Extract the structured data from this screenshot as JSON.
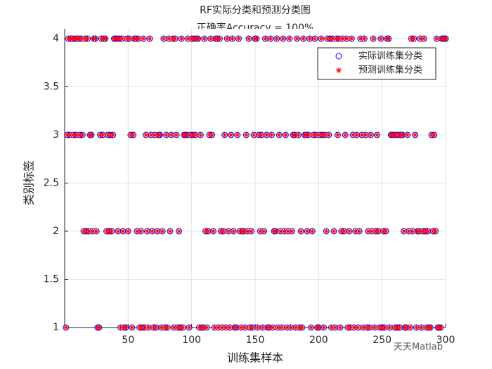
{
  "chart_data": {
    "type": "scatter",
    "title": "RF实际分类和预测分类图",
    "subtitle": "正确率Accuracy = 100%",
    "x_label": "训练集样本",
    "y_label": "类别标签",
    "watermark": "天天Matlab",
    "xlim": [
      0,
      300
    ],
    "xticks": [
      50,
      100,
      150,
      200,
      250,
      300
    ],
    "ylim": [
      1,
      4
    ],
    "yticks": [
      1,
      1.5,
      2,
      2.5,
      3,
      3.5,
      4
    ],
    "grid": true,
    "legend": "northeast",
    "x": [
      1,
      2,
      3,
      4,
      5,
      6,
      7,
      8,
      9,
      10,
      11,
      12,
      13,
      14,
      15,
      16,
      17,
      18,
      19,
      20,
      21,
      22,
      23,
      24,
      25,
      26,
      27,
      28,
      29,
      30,
      31,
      32,
      33,
      34,
      35,
      36,
      37,
      38,
      39,
      40,
      41,
      42,
      43,
      44,
      45,
      46,
      47,
      48,
      49,
      50,
      51,
      52,
      53,
      54,
      55,
      56,
      57,
      58,
      59,
      60,
      61,
      62,
      63,
      64,
      65,
      66,
      67,
      68,
      69,
      70,
      71,
      72,
      73,
      74,
      75,
      76,
      77,
      78,
      79,
      80,
      81,
      82,
      83,
      84,
      85,
      86,
      87,
      88,
      89,
      90,
      91,
      92,
      93,
      94,
      95,
      96,
      97,
      98,
      99,
      100,
      101,
      102,
      103,
      104,
      105,
      106,
      107,
      108,
      109,
      110,
      111,
      112,
      113,
      114,
      115,
      116,
      117,
      118,
      119,
      120,
      121,
      122,
      123,
      124,
      125,
      126,
      127,
      128,
      129,
      130,
      131,
      132,
      133,
      134,
      135,
      136,
      137,
      138,
      139,
      140,
      141,
      142,
      143,
      144,
      145,
      146,
      147,
      148,
      149,
      150,
      151,
      152,
      153,
      154,
      155,
      156,
      157,
      158,
      159,
      160,
      161,
      162,
      163,
      164,
      165,
      166,
      167,
      168,
      169,
      170,
      171,
      172,
      173,
      174,
      175,
      176,
      177,
      178,
      179,
      180,
      181,
      182,
      183,
      184,
      185,
      186,
      187,
      188,
      189,
      190,
      191,
      192,
      193,
      194,
      195,
      196,
      197,
      198,
      199,
      200,
      201,
      202,
      203,
      204,
      205,
      206,
      207,
      208,
      209,
      210,
      211,
      212,
      213,
      214,
      215,
      216,
      217,
      218,
      219,
      220,
      221,
      222,
      223,
      224,
      225,
      226,
      227,
      228,
      229,
      230,
      231,
      232,
      233,
      234,
      235,
      236,
      237,
      238,
      239,
      240,
      241,
      242,
      243,
      244,
      245,
      246,
      247,
      248,
      249,
      250,
      251,
      252,
      253,
      254,
      255,
      256,
      257,
      258,
      259,
      260,
      261,
      262,
      263,
      264,
      265,
      266,
      267,
      268,
      269,
      270,
      271,
      272,
      273,
      274,
      275,
      276,
      277,
      278,
      279,
      280,
      281,
      282,
      283,
      284,
      285,
      286,
      287,
      288,
      289,
      290,
      291,
      292,
      293,
      294,
      295,
      296,
      297,
      298,
      299,
      300
    ],
    "series": [
      {
        "name": "实际训练集分类",
        "color": "#0000ff",
        "marker": "o",
        "values": [
          1,
          3,
          4,
          3,
          4,
          4,
          3,
          4,
          3,
          4,
          4,
          3,
          4,
          3,
          2,
          4,
          2,
          4,
          2,
          3,
          3,
          2,
          4,
          4,
          2,
          1,
          1,
          3,
          4,
          3,
          4,
          4,
          2,
          3,
          2,
          3,
          2,
          3,
          4,
          4,
          4,
          2,
          4,
          1,
          4,
          2,
          1,
          1,
          4,
          2,
          4,
          3,
          1,
          3,
          4,
          4,
          2,
          4,
          1,
          2,
          1,
          4,
          1,
          3,
          2,
          1,
          4,
          3,
          2,
          1,
          3,
          1,
          2,
          3,
          3,
          1,
          2,
          4,
          1,
          3,
          1,
          4,
          2,
          3,
          4,
          1,
          4,
          3,
          1,
          2,
          1,
          4,
          1,
          3,
          3,
          3,
          4,
          1,
          3,
          4,
          3,
          4,
          3,
          4,
          4,
          1,
          3,
          1,
          1,
          4,
          2,
          1,
          2,
          3,
          4,
          3,
          2,
          1,
          4,
          4,
          1,
          4,
          2,
          1,
          2,
          3,
          1,
          4,
          2,
          1,
          3,
          4,
          2,
          1,
          1,
          3,
          4,
          2,
          1,
          2,
          2,
          1,
          3,
          2,
          4,
          1,
          2,
          1,
          3,
          4,
          4,
          1,
          3,
          2,
          3,
          1,
          2,
          4,
          3,
          1,
          1,
          4,
          3,
          1,
          2,
          2,
          4,
          1,
          3,
          2,
          1,
          4,
          2,
          3,
          1,
          2,
          4,
          1,
          2,
          3,
          3,
          1,
          4,
          3,
          1,
          2,
          1,
          4,
          3,
          3,
          2,
          3,
          4,
          1,
          2,
          3,
          4,
          3,
          1,
          1,
          3,
          4,
          3,
          1,
          3,
          2,
          4,
          3,
          4,
          1,
          4,
          2,
          1,
          4,
          3,
          4,
          1,
          2,
          4,
          2,
          3,
          4,
          1,
          2,
          1,
          4,
          3,
          1,
          2,
          3,
          1,
          2,
          4,
          3,
          1,
          4,
          3,
          1,
          2,
          1,
          3,
          2,
          4,
          1,
          2,
          3,
          2,
          1,
          4,
          1,
          2,
          1,
          2,
          4,
          4,
          1,
          3,
          3,
          3,
          1,
          3,
          1,
          3,
          1,
          3,
          3,
          2,
          1,
          1,
          3,
          2,
          1,
          4,
          2,
          4,
          3,
          1,
          2,
          2,
          4,
          1,
          2,
          4,
          2,
          1,
          2,
          1,
          1,
          3,
          2,
          3,
          2,
          4,
          1,
          1,
          1,
          4,
          4,
          4,
          4
        ]
      },
      {
        "name": "预测训练集分类",
        "color": "#ff0000",
        "marker": "*",
        "values": [
          1,
          3,
          4,
          3,
          4,
          4,
          3,
          4,
          3,
          4,
          4,
          3,
          4,
          3,
          2,
          4,
          2,
          4,
          2,
          3,
          3,
          2,
          4,
          4,
          2,
          1,
          1,
          3,
          4,
          3,
          4,
          4,
          2,
          3,
          2,
          3,
          2,
          3,
          4,
          4,
          4,
          2,
          4,
          1,
          4,
          2,
          1,
          1,
          4,
          2,
          4,
          3,
          1,
          3,
          4,
          4,
          2,
          4,
          1,
          2,
          1,
          4,
          1,
          3,
          2,
          1,
          4,
          3,
          2,
          1,
          3,
          1,
          2,
          3,
          3,
          1,
          2,
          4,
          1,
          3,
          1,
          4,
          2,
          3,
          4,
          1,
          4,
          3,
          1,
          2,
          1,
          4,
          1,
          3,
          3,
          3,
          4,
          1,
          3,
          4,
          3,
          4,
          3,
          4,
          4,
          1,
          3,
          1,
          1,
          4,
          2,
          1,
          2,
          3,
          4,
          3,
          2,
          1,
          4,
          4,
          1,
          4,
          2,
          1,
          2,
          3,
          1,
          4,
          2,
          1,
          3,
          4,
          2,
          1,
          1,
          3,
          4,
          2,
          1,
          2,
          2,
          1,
          3,
          2,
          4,
          1,
          2,
          1,
          3,
          4,
          4,
          1,
          3,
          2,
          3,
          1,
          2,
          4,
          3,
          1,
          1,
          4,
          3,
          1,
          2,
          2,
          4,
          1,
          3,
          2,
          1,
          4,
          2,
          3,
          1,
          2,
          4,
          1,
          2,
          3,
          3,
          1,
          4,
          3,
          1,
          2,
          1,
          4,
          3,
          3,
          2,
          3,
          4,
          1,
          2,
          3,
          4,
          3,
          1,
          1,
          3,
          4,
          3,
          1,
          3,
          2,
          4,
          3,
          4,
          1,
          4,
          2,
          1,
          4,
          3,
          4,
          1,
          2,
          4,
          2,
          3,
          4,
          1,
          2,
          1,
          4,
          3,
          1,
          2,
          3,
          1,
          2,
          4,
          3,
          1,
          4,
          3,
          1,
          2,
          1,
          3,
          2,
          4,
          1,
          2,
          3,
          2,
          1,
          4,
          1,
          2,
          1,
          2,
          4,
          4,
          1,
          3,
          3,
          3,
          1,
          3,
          1,
          3,
          1,
          3,
          3,
          2,
          1,
          1,
          3,
          2,
          1,
          4,
          2,
          4,
          3,
          1,
          2,
          2,
          4,
          1,
          2,
          4,
          2,
          1,
          2,
          1,
          1,
          3,
          2,
          3,
          2,
          4,
          1,
          1,
          1,
          4,
          4,
          4,
          4
        ]
      }
    ]
  }
}
